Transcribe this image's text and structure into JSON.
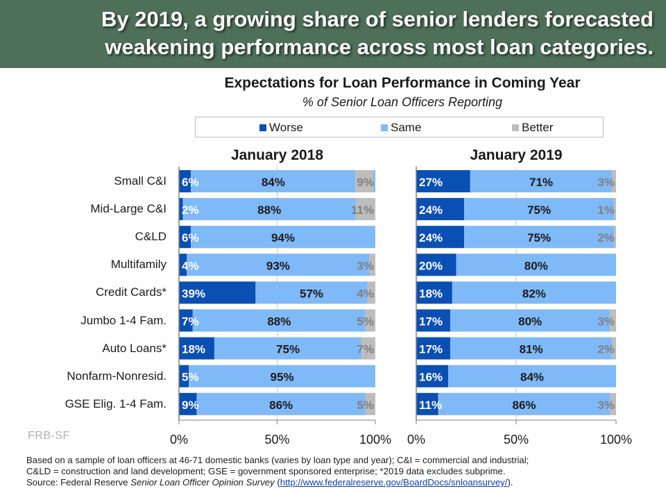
{
  "banner": {
    "title": "By 2019, a growing share of senior lenders forecasted weakening performance across most loan categories."
  },
  "chart_data": {
    "type": "bar",
    "orientation": "horizontal-stacked-100",
    "title": "Expectations for Loan Performance in Coming Year",
    "subtitle": "% of Senior Loan Officers Reporting",
    "legend": {
      "position": "top",
      "entries": [
        {
          "name": "Worse",
          "color": "#0a4fb4"
        },
        {
          "name": "Same",
          "color": "#80b9f8"
        },
        {
          "name": "Better",
          "color": "#bdbdbd"
        }
      ]
    },
    "categories": [
      "Small C&I",
      "Mid-Large C&I",
      "C&LD",
      "Multifamily",
      "Credit Cards*",
      "Jumbo 1-4 Fam.",
      "Auto Loans*",
      "Nonfarm-Nonresid.",
      "GSE Elig. 1-4 Fam."
    ],
    "xlim": [
      0,
      100
    ],
    "xticks": [
      "0%",
      "50%",
      "100%"
    ],
    "grid": true,
    "panels": [
      {
        "title": "January 2018",
        "series": [
          {
            "name": "Worse",
            "values": [
              6,
              2,
              6,
              4,
              39,
              7,
              18,
              5,
              9
            ]
          },
          {
            "name": "Same",
            "values": [
              84,
              88,
              94,
              93,
              57,
              88,
              75,
              95,
              86
            ]
          },
          {
            "name": "Better",
            "values": [
              9,
              11,
              0,
              3,
              4,
              5,
              7,
              0,
              5
            ]
          }
        ],
        "labels": {
          "Worse": [
            "6%",
            "2%",
            "6%",
            "4%",
            "39%",
            "7%",
            "18%",
            "5%",
            "9%"
          ],
          "Same": [
            "84%",
            "88%",
            "94%",
            "93%",
            "57%",
            "88%",
            "75%",
            "95%",
            "86%"
          ],
          "Better": [
            "9%",
            "11%",
            "",
            "3%",
            "4%",
            "5%",
            "7%",
            "",
            "5%"
          ]
        }
      },
      {
        "title": "January 2019",
        "series": [
          {
            "name": "Worse",
            "values": [
              27,
              24,
              24,
              20,
              18,
              17,
              17,
              16,
              11
            ]
          },
          {
            "name": "Same",
            "values": [
              71,
              75,
              75,
              80,
              82,
              80,
              81,
              84,
              86
            ]
          },
          {
            "name": "Better",
            "values": [
              3,
              1,
              2,
              0,
              0,
              3,
              2,
              0,
              3
            ]
          }
        ],
        "labels": {
          "Worse": [
            "27%",
            "24%",
            "24%",
            "20%",
            "18%",
            "17%",
            "17%",
            "16%",
            "11%"
          ],
          "Same": [
            "71%",
            "75%",
            "75%",
            "80%",
            "82%",
            "80%",
            "81%",
            "84%",
            "86%"
          ],
          "Better": [
            "3%",
            "1%",
            "2%",
            "",
            "",
            "3%",
            "2%",
            "",
            "3%"
          ]
        }
      }
    ]
  },
  "watermark": "FRB-SF",
  "footnote": {
    "line1": "Based on a sample of loan officers at 46-71 domestic banks (varies by loan type and year); C&I = commercial and industrial;",
    "line2": "C&LD = construction and land development; GSE = government sponsored enterprise; *2019 data excludes subprime.",
    "source_prefix": "Source: Federal Reserve ",
    "source_title": "Senior Loan Officer Opinion Survey",
    "source_open": " (",
    "source_link": "http://www.federalreserve.gov/BoardDocs/snloansurvey/",
    "source_close": ")."
  }
}
